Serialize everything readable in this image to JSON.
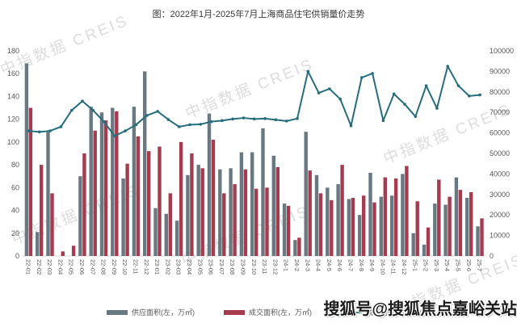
{
  "title": "图：2022年1月-2025年7月上海商品住宅供销量价走势",
  "watermark": {
    "diagonal": "中指数据 CREIS",
    "overlay": "搜狐号@搜狐焦点嘉峪关站"
  },
  "legend": {
    "supply_label": "供应面积(左，万㎡)",
    "sales_label": "成交面积(左，万㎡)",
    "price_label": "成交均价(右，元/㎡)"
  },
  "colors": {
    "supply_bar": "#68798114",
    "supply": "#687981",
    "sales": "#a63b50",
    "price": "#266e7e",
    "axis_text": "#595959",
    "baseline": "#d9d9d9"
  },
  "chart_data": {
    "type": "bar+line combo",
    "title": "图：2022年1月-2025年7月上海商品住宅供销量价走势",
    "categories": [
      "22-01",
      "22-02",
      "22-03",
      "22-04",
      "22-05",
      "22-06",
      "22-07",
      "22-08",
      "22-09",
      "22-10",
      "22-11",
      "22-12",
      "23-01",
      "23-02",
      "23-03",
      "23-04",
      "23-05",
      "23-06",
      "23-07",
      "23-08",
      "23-09",
      "23-10",
      "23-11",
      "23-12",
      "24-1",
      "24-2",
      "24-3",
      "24-4",
      "24-5",
      "24-6",
      "24-7",
      "24-8",
      "24-9",
      "24-10",
      "24-11",
      "24-12",
      "25-1",
      "25-2",
      "25-3",
      "25-4",
      "25-5",
      "25-6",
      "25-7"
    ],
    "series": [
      {
        "name": "供应面积(左，万㎡)",
        "type": "bar",
        "axis": "left",
        "color": "#687981",
        "values": [
          169,
          21,
          109,
          0,
          0,
          70,
          131,
          126,
          130,
          68,
          131,
          162,
          42,
          37,
          31,
          71,
          80,
          125,
          76,
          77,
          91,
          91,
          112,
          88,
          46,
          14,
          109,
          71,
          60,
          63,
          50,
          36,
          73,
          52,
          53,
          72,
          20,
          10,
          46,
          45,
          69,
          51,
          26
        ]
      },
      {
        "name": "成交面积(左，万㎡)",
        "type": "bar",
        "axis": "left",
        "color": "#a63b50",
        "values": [
          130,
          80,
          55,
          4,
          9,
          90,
          110,
          119,
          127,
          81,
          105,
          92,
          96,
          55,
          100,
          90,
          77,
          102,
          55,
          63,
          76,
          59,
          60,
          78,
          44,
          16,
          75,
          55,
          49,
          80,
          51,
          53,
          47,
          69,
          68,
          79,
          48,
          25,
          67,
          52,
          58,
          56,
          33
        ]
      },
      {
        "name": "成交均价(右，元/㎡)",
        "type": "line",
        "axis": "right",
        "color": "#266e7e",
        "values": [
          61000,
          60500,
          61000,
          63000,
          71000,
          75500,
          71000,
          65500,
          58500,
          61000,
          64000,
          68500,
          70500,
          66500,
          63000,
          64000,
          64200,
          65500,
          66000,
          66800,
          67300,
          66800,
          67000,
          66400,
          65800,
          67000,
          90000,
          79500,
          81500,
          76500,
          63500,
          87000,
          89000,
          66000,
          79000,
          74000,
          68000,
          83000,
          72000,
          92500,
          83000,
          78000,
          78500
        ]
      }
    ],
    "left_axis": {
      "min": 0,
      "max": 180,
      "step": 20,
      "ticks": [
        "0",
        "20",
        "40",
        "60",
        "80",
        "100",
        "120",
        "140",
        "160",
        "180"
      ]
    },
    "right_axis": {
      "min": 0,
      "max": 100000,
      "step": 10000,
      "ticks": [
        "0",
        "10000",
        "20000",
        "30000",
        "40000",
        "50000",
        "60000",
        "70000",
        "80000",
        "90000",
        "100000"
      ]
    },
    "grid": false,
    "legend_position": "bottom"
  }
}
